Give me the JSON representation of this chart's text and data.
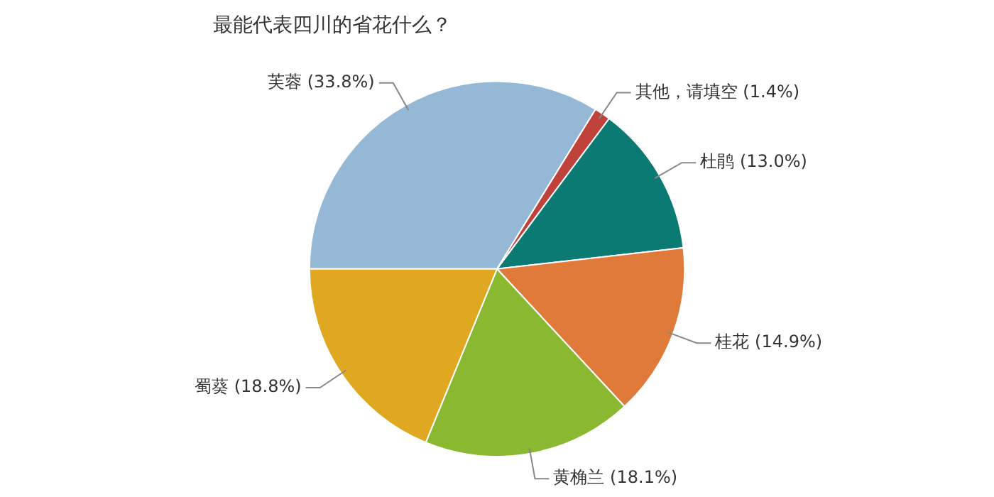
{
  "chart_data": {
    "type": "pie",
    "title": "最能代表四川的省花什么？",
    "categories": [
      "芙蓉",
      "其他，请填空",
      "杜鹃",
      "桂花",
      "黄桷兰",
      "蜀葵"
    ],
    "values": [
      33.8,
      1.4,
      13.0,
      14.9,
      18.1,
      18.8
    ],
    "value_labels": [
      "(33.8%)",
      "(1.4%)",
      "(13.0%)",
      "(14.9%)",
      "(18.1%)",
      "(18.8%)"
    ],
    "colors": [
      "#94b8d6",
      "#c0403a",
      "#0b7a73",
      "#e07a3a",
      "#8ab830",
      "#e0a820"
    ],
    "legend": false
  }
}
